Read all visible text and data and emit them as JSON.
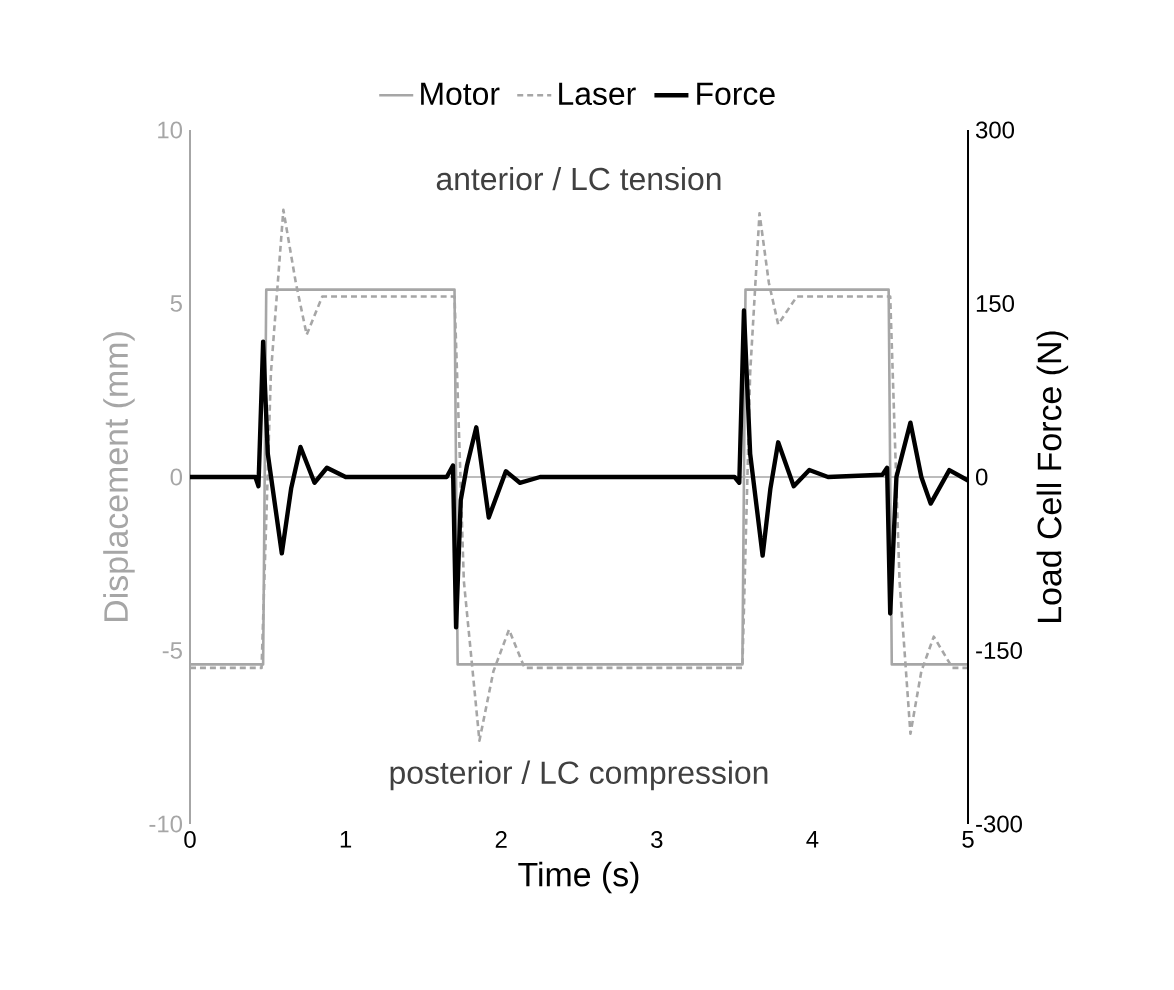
{
  "chart_data": {
    "type": "line",
    "xlabel": "Time (s)",
    "ylabel": "Displacement (mm)",
    "y2label": "Load Cell Force (N)",
    "annotations": [
      "anterior / LC tension",
      "posterior / LC compression"
    ],
    "series": [
      {
        "name": "Motor",
        "color": "#a6a6a6",
        "line_style": "solid",
        "x": [
          0,
          0.47,
          0.49,
          1.7,
          1.72,
          3.55,
          3.57,
          4.49,
          4.51,
          5
        ],
        "values": [
          -5.4,
          -5.4,
          5.4,
          5.4,
          -5.4,
          -5.4,
          5.4,
          5.4,
          -5.4,
          -5.4
        ]
      },
      {
        "name": "Laser",
        "color": "#a6a6a6",
        "line_style": "dashed",
        "x": [
          0,
          0.46,
          0.52,
          0.6,
          0.68,
          0.75,
          0.85,
          1.0,
          1.7,
          1.76,
          1.86,
          1.95,
          2.05,
          2.15,
          3.55,
          3.6,
          3.66,
          3.72,
          3.78,
          3.9,
          4.5,
          4.56,
          4.63,
          4.7,
          4.78,
          4.9,
          5
        ],
        "values": [
          -5.5,
          -5.5,
          3,
          7.7,
          5.6,
          4.1,
          5.2,
          5.2,
          5.2,
          -3,
          -7.6,
          -5.6,
          -4.4,
          -5.5,
          -5.5,
          3,
          7.6,
          5.6,
          4.4,
          5.2,
          5.2,
          -3,
          -7.4,
          -5.6,
          -4.6,
          -5.5,
          -5.5
        ]
      },
      {
        "name": "Force",
        "color": "#000000",
        "line_style": "solid",
        "axis": "y2",
        "x": [
          0,
          0.42,
          0.44,
          0.47,
          0.5,
          0.59,
          0.65,
          0.71,
          0.8,
          0.88,
          1.0,
          1.65,
          1.69,
          1.71,
          1.74,
          1.78,
          1.84,
          1.92,
          2.03,
          2.12,
          2.25,
          3.0,
          3.5,
          3.53,
          3.56,
          3.6,
          3.68,
          3.73,
          3.78,
          3.88,
          3.98,
          4.1,
          4.45,
          4.48,
          4.5,
          4.54,
          4.63,
          4.7,
          4.76,
          4.88,
          5.0
        ],
        "values": [
          0,
          0,
          -8,
          117,
          20,
          -66,
          -10,
          26,
          -5,
          8,
          0,
          0,
          10,
          -130,
          -20,
          10,
          43,
          -35,
          5,
          -5,
          0,
          0,
          0,
          -5,
          144,
          20,
          -68,
          -10,
          30,
          -8,
          6,
          0,
          2,
          8,
          -118,
          0,
          47,
          0,
          -23,
          6,
          -3
        ]
      }
    ],
    "xlim": [
      0,
      5
    ],
    "xticks": [
      0,
      1,
      2,
      3,
      4,
      5
    ],
    "ylim": [
      -10,
      10
    ],
    "yticks": [
      -10,
      -5,
      0,
      5,
      10
    ],
    "y2lim": [
      -300,
      300
    ],
    "y2ticks": [
      -300,
      -150,
      0,
      150,
      300
    ],
    "ref_lines": [
      {
        "axis": "y",
        "value": 0,
        "color": "#a6a6a6"
      }
    ],
    "legend": "top",
    "grid": false,
    "marker": "none"
  }
}
